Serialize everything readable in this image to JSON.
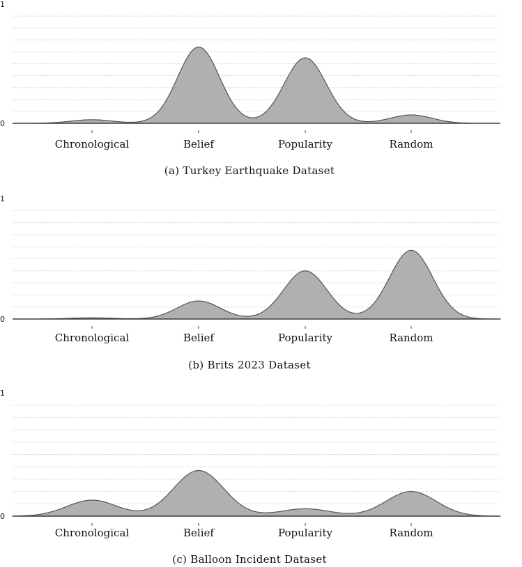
{
  "colors": {
    "fill": "#b0b0b0",
    "line": "#555555",
    "grid": "#d4d4d4"
  },
  "chart_data": [
    {
      "type": "area",
      "subtype": "density",
      "caption": "(a) Turkey Earthquake Dataset",
      "categories": [
        "Chronological",
        "Belief",
        "Popularity",
        "Random"
      ],
      "yticks": [
        "0",
        "1"
      ],
      "ylim": [
        0,
        1
      ],
      "peak_heights": [
        0.03,
        0.64,
        0.55,
        0.07
      ],
      "grid": true
    },
    {
      "type": "area",
      "subtype": "density",
      "caption": "(b) Brits 2023 Dataset",
      "categories": [
        "Chronological",
        "Belief",
        "Popularity",
        "Random"
      ],
      "yticks": [
        "0",
        "1"
      ],
      "ylim": [
        0,
        1
      ],
      "peak_heights": [
        0.01,
        0.15,
        0.4,
        0.57
      ],
      "grid": true
    },
    {
      "type": "area",
      "subtype": "density",
      "caption": "(c) Balloon Incident Dataset",
      "categories": [
        "Chronological",
        "Belief",
        "Popularity",
        "Random"
      ],
      "yticks": [
        "0",
        "1"
      ],
      "ylim": [
        0,
        1
      ],
      "peak_heights": [
        0.13,
        0.37,
        0.06,
        0.2
      ],
      "grid": true
    }
  ]
}
